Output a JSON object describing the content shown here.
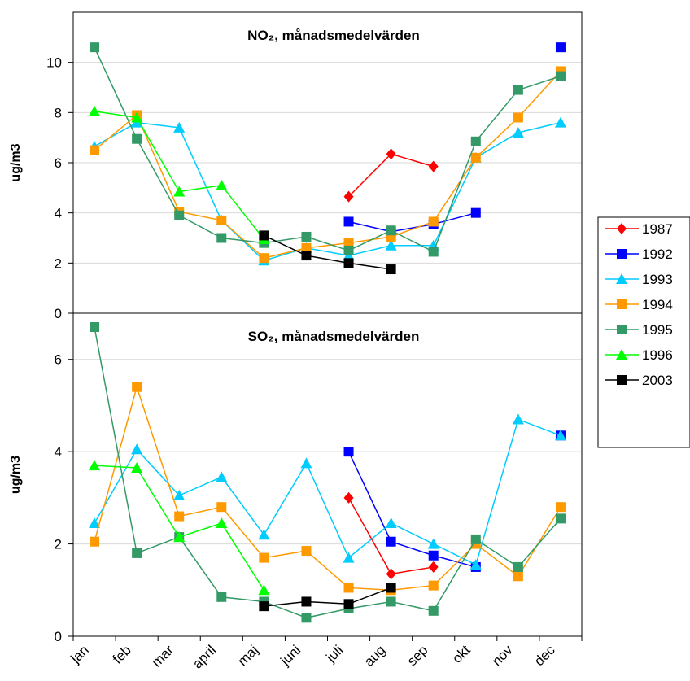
{
  "chart_data": {
    "type": "line",
    "categories": [
      "jan",
      "feb",
      "mar",
      "april",
      "maj",
      "juni",
      "juli",
      "aug",
      "sep",
      "okt",
      "nov",
      "dec"
    ],
    "series": [
      {
        "name": "1987",
        "color": "#ff0000",
        "marker": "diamond"
      },
      {
        "name": "1992",
        "color": "#0000ff",
        "marker": "square"
      },
      {
        "name": "1993",
        "color": "#00ccff",
        "marker": "triangle"
      },
      {
        "name": "1994",
        "color": "#ff9900",
        "marker": "square"
      },
      {
        "name": "1995",
        "color": "#339966",
        "marker": "square"
      },
      {
        "name": "1996",
        "color": "#00ff00",
        "marker": "triangle"
      },
      {
        "name": "2003",
        "color": "#000000",
        "marker": "square"
      }
    ],
    "grid": true,
    "legend": "right",
    "panels": [
      {
        "title": "NO₂, månadsmedelvärden",
        "ylabel": "ug/m3",
        "ylim": [
          0,
          12
        ],
        "yticks": [
          0,
          2,
          4,
          6,
          8,
          10
        ],
        "values": [
          [
            null,
            null,
            null,
            null,
            null,
            null,
            4.65,
            6.35,
            5.85,
            null,
            null,
            null
          ],
          [
            null,
            null,
            null,
            null,
            null,
            null,
            3.65,
            3.25,
            3.55,
            4.0,
            null,
            10.6
          ],
          [
            6.65,
            7.6,
            7.4,
            3.7,
            2.1,
            2.6,
            2.3,
            2.7,
            2.7,
            6.2,
            7.2,
            7.6
          ],
          [
            6.5,
            7.9,
            4.05,
            3.7,
            2.2,
            2.6,
            2.8,
            3.05,
            3.65,
            6.2,
            7.8,
            9.65
          ],
          [
            10.6,
            6.95,
            3.9,
            3.0,
            2.8,
            3.05,
            2.5,
            3.3,
            2.45,
            6.85,
            8.9,
            9.45
          ],
          [
            8.05,
            7.8,
            4.85,
            5.1,
            2.95,
            null,
            null,
            null,
            null,
            null,
            null,
            null
          ],
          [
            null,
            null,
            null,
            null,
            3.1,
            2.3,
            2.0,
            1.75,
            null,
            null,
            null,
            null
          ]
        ]
      },
      {
        "title": "SO₂, månadsmedelvärden",
        "ylabel": "ug/m3",
        "ylim": [
          0,
          7
        ],
        "yticks": [
          0,
          2,
          4,
          6
        ],
        "values": [
          [
            null,
            null,
            null,
            null,
            null,
            null,
            3.0,
            1.35,
            1.5,
            null,
            null,
            null
          ],
          [
            null,
            null,
            null,
            null,
            null,
            null,
            4.0,
            2.05,
            1.75,
            1.5,
            null,
            4.35
          ],
          [
            2.45,
            4.05,
            3.05,
            3.45,
            2.2,
            3.75,
            1.7,
            2.45,
            2.0,
            1.55,
            4.7,
            4.35
          ],
          [
            2.05,
            5.4,
            2.6,
            2.8,
            1.7,
            1.85,
            1.05,
            1.0,
            1.1,
            2.0,
            1.3,
            2.8
          ],
          [
            6.7,
            1.8,
            2.15,
            0.85,
            0.75,
            0.4,
            0.6,
            0.75,
            0.55,
            2.1,
            1.5,
            2.55
          ],
          [
            3.7,
            3.65,
            2.15,
            2.45,
            1.0,
            null,
            null,
            null,
            null,
            null,
            null,
            null
          ],
          [
            null,
            null,
            null,
            null,
            0.65,
            0.75,
            0.7,
            1.05,
            null,
            null,
            null,
            null
          ]
        ]
      }
    ]
  }
}
